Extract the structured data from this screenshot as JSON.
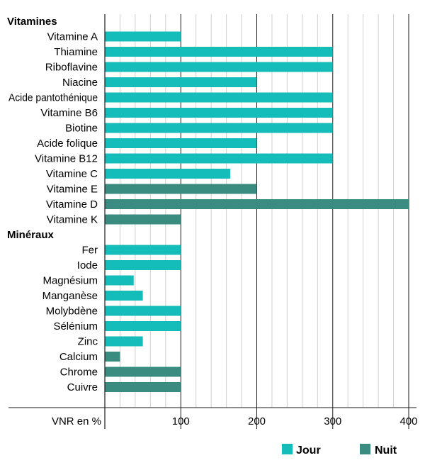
{
  "chart_data": {
    "type": "bar",
    "orientation": "horizontal",
    "xlabel": "VNR en %",
    "xlim": [
      0,
      400
    ],
    "xticks": [
      100,
      200,
      300,
      400
    ],
    "minor_grid_step": 20,
    "grid": true,
    "legend_position": "bottom-right",
    "colors": {
      "Jour": "#14bdb9",
      "Nuit": "#3a8c80"
    },
    "legend": [
      {
        "name": "Jour",
        "color": "#14bdb9"
      },
      {
        "name": "Nuit",
        "color": "#3a8c80"
      }
    ],
    "sections": [
      {
        "title": "Vitamines",
        "items": [
          {
            "label": "Vitamine A",
            "value": 100,
            "series": "Jour"
          },
          {
            "label": "Thiamine",
            "value": 300,
            "series": "Jour"
          },
          {
            "label": "Riboflavine",
            "value": 300,
            "series": "Jour"
          },
          {
            "label": "Niacine",
            "value": 200,
            "series": "Jour"
          },
          {
            "label": "Acide pantothénique",
            "value": 300,
            "series": "Jour"
          },
          {
            "label": "Vitamine B6",
            "value": 300,
            "series": "Jour"
          },
          {
            "label": "Biotine",
            "value": 300,
            "series": "Jour"
          },
          {
            "label": "Acide folique",
            "value": 200,
            "series": "Jour"
          },
          {
            "label": "Vitamine B12",
            "value": 300,
            "series": "Jour"
          },
          {
            "label": "Vitamine C",
            "value": 165,
            "series": "Jour"
          },
          {
            "label": "Vitamine E",
            "value": 200,
            "series": "Nuit"
          },
          {
            "label": "Vitamine D",
            "value": 400,
            "series": "Nuit"
          },
          {
            "label": "Vitamine K",
            "value": 100,
            "series": "Nuit"
          }
        ]
      },
      {
        "title": "Minéraux",
        "items": [
          {
            "label": "Fer",
            "value": 100,
            "series": "Jour"
          },
          {
            "label": "Iode",
            "value": 100,
            "series": "Jour"
          },
          {
            "label": "Magnésium",
            "value": 38,
            "series": "Jour"
          },
          {
            "label": "Manganèse",
            "value": 50,
            "series": "Jour"
          },
          {
            "label": "Molybdène",
            "value": 100,
            "series": "Jour"
          },
          {
            "label": "Sélénium",
            "value": 100,
            "series": "Jour"
          },
          {
            "label": "Zinc",
            "value": 50,
            "series": "Jour"
          },
          {
            "label": "Calcium",
            "value": 20,
            "series": "Nuit"
          },
          {
            "label": "Chrome",
            "value": 100,
            "series": "Nuit"
          },
          {
            "label": "Cuivre",
            "value": 100,
            "series": "Nuit"
          }
        ]
      }
    ]
  }
}
